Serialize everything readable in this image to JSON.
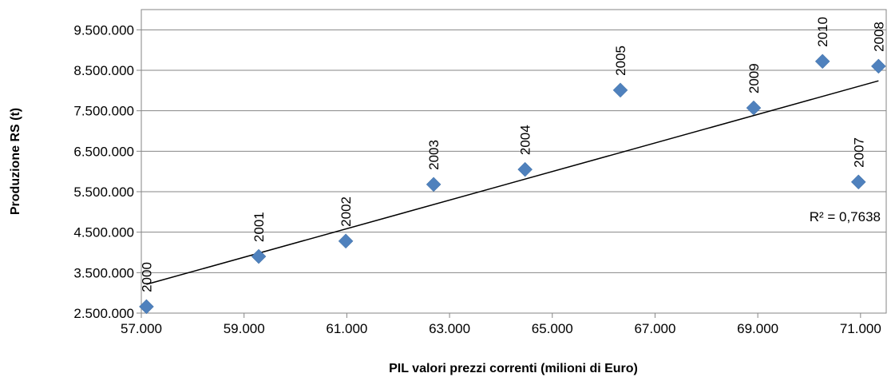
{
  "chart_data": {
    "type": "scatter",
    "x_label": "PIL valori prezzi correnti  (milioni di Euro)",
    "y_label": "Produzione  RS (t)",
    "labels": [
      "2000",
      "2001",
      "2002",
      "2003",
      "2004",
      "2005",
      "2009",
      "2010",
      "2007",
      "2008"
    ],
    "x": [
      57100,
      59285,
      60980,
      62690,
      64470,
      66325,
      68920,
      70260,
      70960,
      71350
    ],
    "y": [
      2660000,
      3900000,
      4280000,
      5680000,
      6050000,
      8010000,
      7570000,
      8720000,
      5740000,
      8600000
    ],
    "color": "#4f81bd",
    "xlim": [
      57000,
      71500
    ],
    "ylim": [
      2500000,
      10000000
    ],
    "xticks": [
      {
        "value": 57000,
        "label": "57.000"
      },
      {
        "value": 59000,
        "label": "59.000"
      },
      {
        "value": 61000,
        "label": "61.000"
      },
      {
        "value": 63000,
        "label": "63.000"
      },
      {
        "value": 65000,
        "label": "65.000"
      },
      {
        "value": 67000,
        "label": "67.000"
      },
      {
        "value": 69000,
        "label": "69.000"
      },
      {
        "value": 71000,
        "label": "71.000"
      }
    ],
    "yticks": [
      {
        "value": 2500000,
        "label": "2.500.000"
      },
      {
        "value": 3500000,
        "label": "3.500.000"
      },
      {
        "value": 4500000,
        "label": "4.500.000"
      },
      {
        "value": 5500000,
        "label": "5.500.000"
      },
      {
        "value": 6500000,
        "label": "6.500.000"
      },
      {
        "value": 7500000,
        "label": "7.500.000"
      },
      {
        "value": 8500000,
        "label": "8.500.000"
      },
      {
        "value": 9500000,
        "label": "9.500.000"
      }
    ],
    "grid": true,
    "trendline": {
      "x": [
        57100,
        71350
      ],
      "y": [
        3210000,
        8240000
      ],
      "color": "#000000",
      "label": "R² = 0,7638"
    }
  }
}
